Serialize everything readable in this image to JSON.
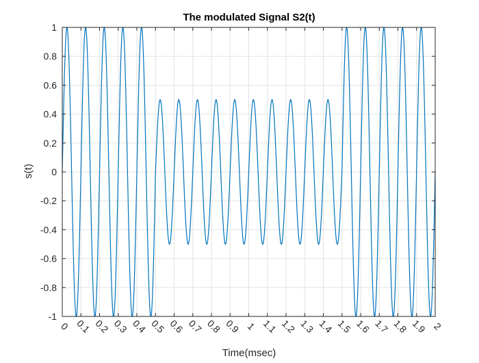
{
  "chart_data": {
    "type": "line",
    "title": "The modulated Signal S2(t)",
    "xlabel": "Time(msec)",
    "ylabel": "s(t)",
    "xlim": [
      0,
      2
    ],
    "ylim": [
      -1,
      1
    ],
    "xticks": [
      "0",
      "0.1",
      "0.2",
      "0.3",
      "0.4",
      "0.5",
      "0.6",
      "0.7",
      "0.8",
      "0.9",
      "1",
      "1.1",
      "1.2",
      "1.3",
      "1.4",
      "1.5",
      "1.6",
      "1.7",
      "1.8",
      "1.9",
      "2"
    ],
    "yticks": [
      "-1",
      "-0.8",
      "-0.6",
      "-0.4",
      "-0.2",
      "0",
      "0.2",
      "0.4",
      "0.6",
      "0.8",
      "1"
    ],
    "grid": true,
    "series": [
      {
        "segments": [
          {
            "t_start": 0.0,
            "t_end": 0.5,
            "amplitude": 1.0,
            "carrier_freq_khz": 10
          },
          {
            "t_start": 0.5,
            "t_end": 1.5,
            "amplitude": 0.5,
            "carrier_freq_khz": 10
          },
          {
            "t_start": 1.5,
            "t_end": 2.0,
            "amplitude": 1.0,
            "carrier_freq_khz": 10
          }
        ],
        "color": "#0072BD"
      }
    ]
  }
}
